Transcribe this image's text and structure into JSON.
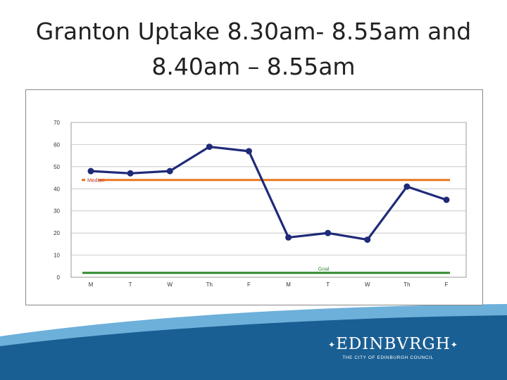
{
  "slide": {
    "title_line1": "Granton Uptake 8.30am- 8.55am and",
    "title_line2": "8.40am – 8.55am"
  },
  "chart_data": {
    "type": "line",
    "title": "",
    "xlabel": "",
    "ylabel": "",
    "categories": [
      "M",
      "T",
      "W",
      "Th",
      "F",
      "M",
      "T",
      "W",
      "Th",
      "F"
    ],
    "ylim": [
      0,
      70
    ],
    "yticks": [
      0,
      10,
      20,
      30,
      40,
      50,
      60,
      70
    ],
    "grid": true,
    "series": [
      {
        "values": [
          48,
          47,
          48,
          59,
          57,
          18,
          20,
          17,
          41,
          35
        ],
        "color": "#1f2a78"
      }
    ],
    "reference_lines": [
      {
        "label": "Median",
        "value": 44,
        "color": "#e8761e"
      },
      {
        "label": "Goal",
        "value": 2,
        "color": "#2e8b2e"
      }
    ]
  },
  "logo": {
    "wordmark": "EDINBVRGH",
    "subtitle": "THE CITY OF EDINBURGH COUNCIL"
  },
  "colors": {
    "wave_dark": "#1a5f93",
    "wave_light": "#6db0da",
    "plot_area": "#ffffff"
  }
}
